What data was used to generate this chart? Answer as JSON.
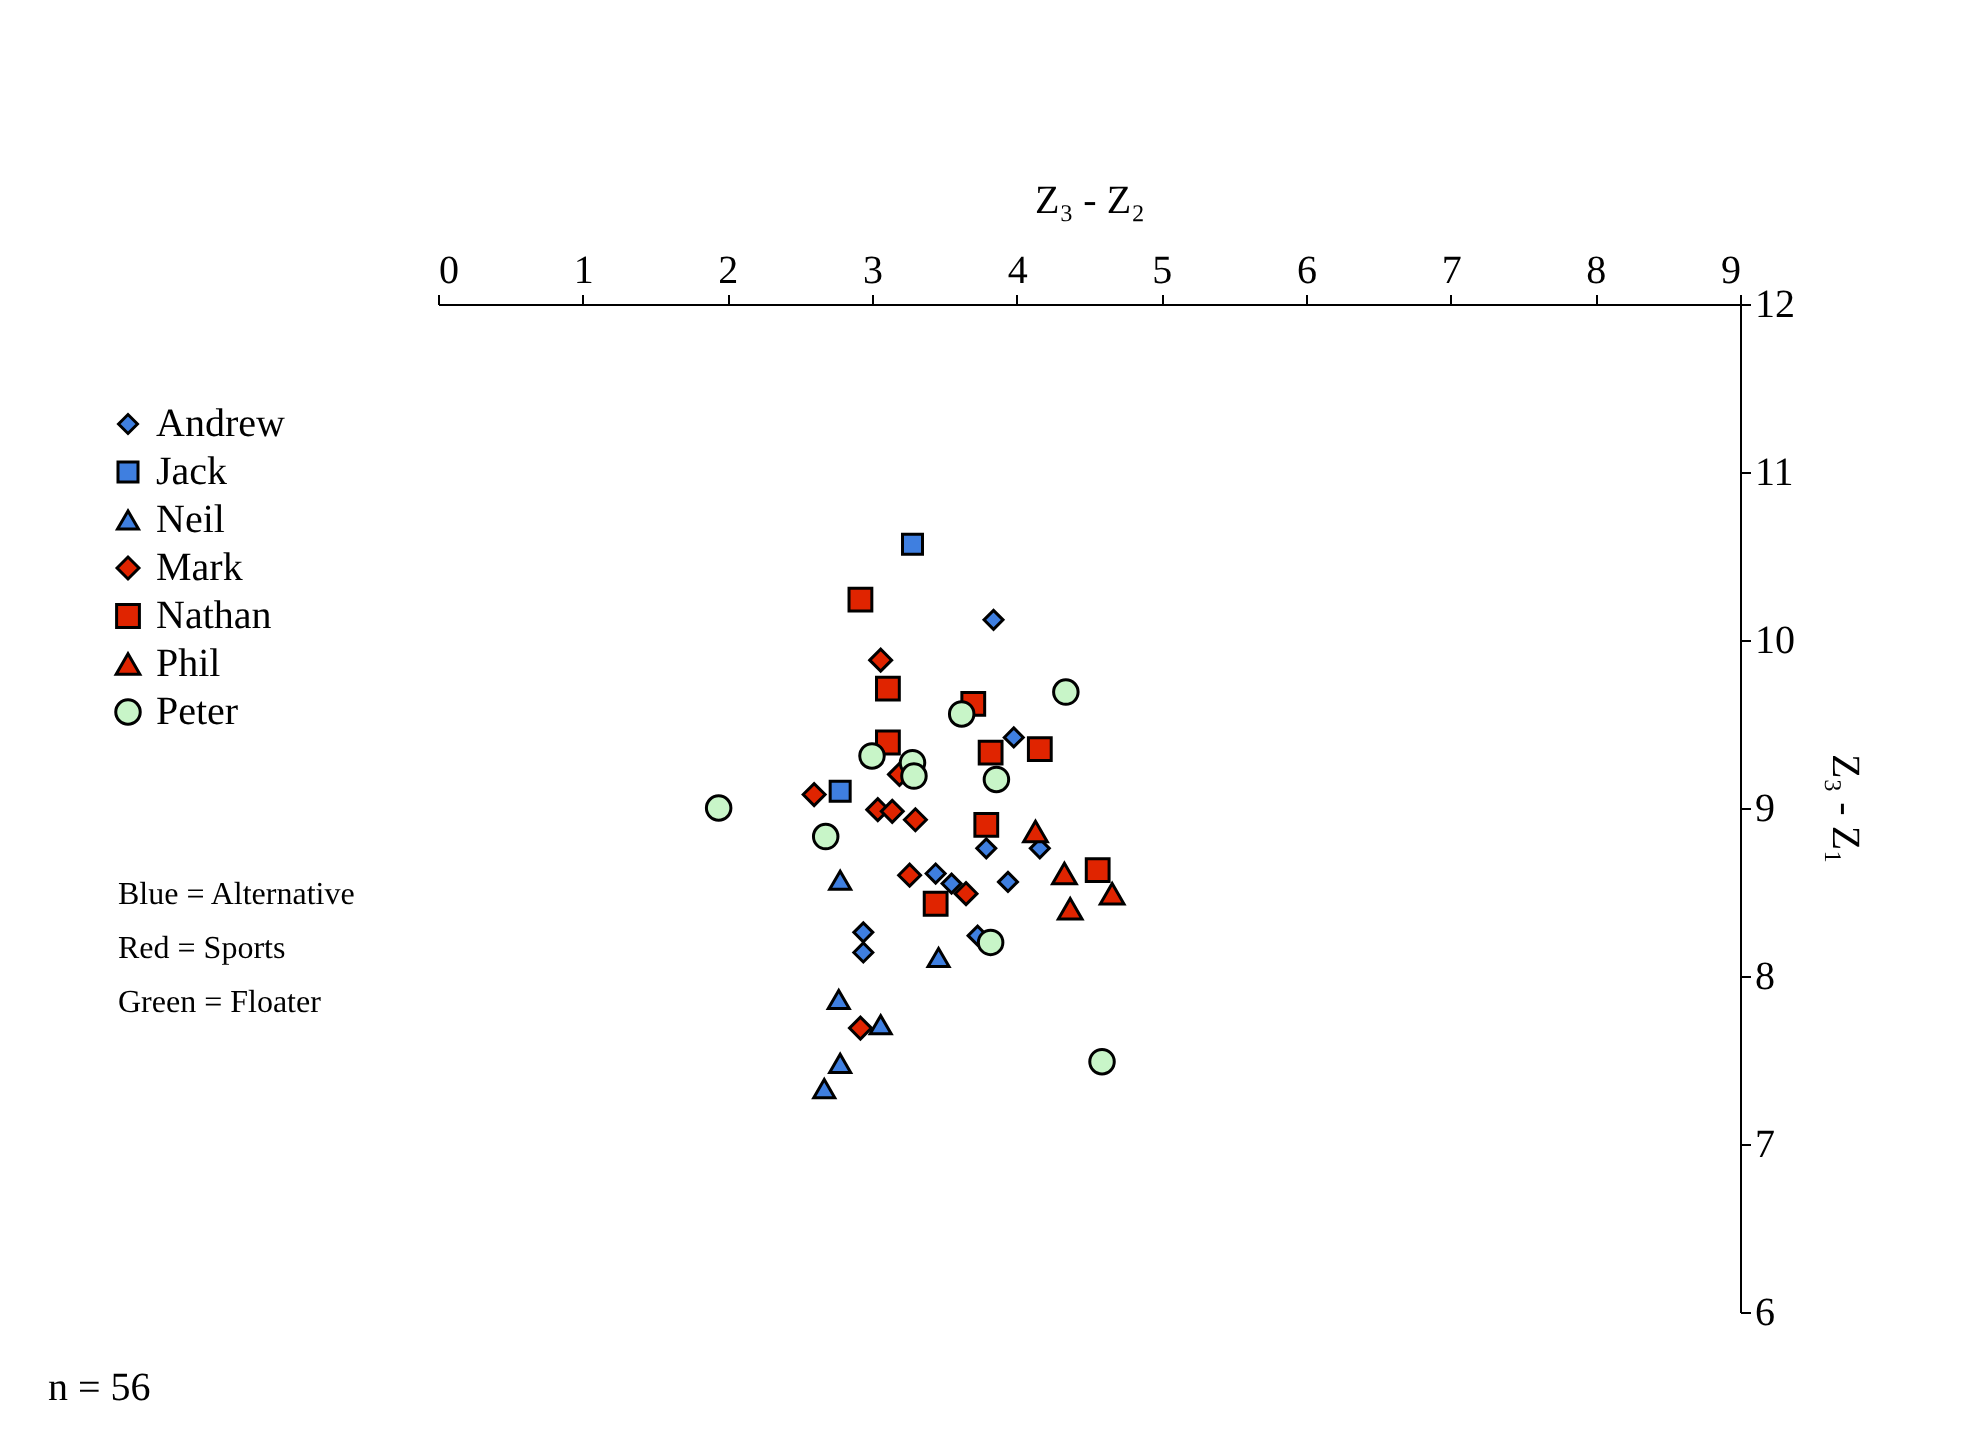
{
  "chart_data": {
    "type": "scatter",
    "xlabel": "Z₃ - Z₂",
    "ylabel": "Z₃ - Z₁",
    "xlim": [
      0,
      9
    ],
    "xticks": [
      0,
      1,
      2,
      3,
      4,
      5,
      6,
      7,
      8,
      9
    ],
    "ylim": [
      6,
      12
    ],
    "yticks": [
      6,
      7,
      8,
      9,
      10,
      11,
      12
    ],
    "grid": false,
    "legend": "left",
    "annotations": [
      "Blue   = Alternative",
      "Red    = Sports",
      "Green = Floater",
      "n  =  56"
    ],
    "series": [
      {
        "name": "Andrew",
        "color": "#3f7fe0",
        "marker": "diamond",
        "x": [
          3.84,
          3.98,
          3.79,
          4.16,
          3.44,
          3.55,
          3.94,
          2.94,
          2.94,
          3.73
        ],
        "values": [
          10.12,
          9.42,
          8.76,
          8.76,
          8.61,
          8.55,
          8.56,
          8.26,
          8.14,
          8.24
        ]
      },
      {
        "name": "Jack",
        "color": "#3f7fe0",
        "marker": "square",
        "x": [
          3.28,
          2.78
        ],
        "values": [
          10.57,
          9.1
        ]
      },
      {
        "name": "Neil",
        "color": "#3f7fe0",
        "marker": "triangle",
        "x": [
          2.78,
          3.46,
          2.77,
          3.06,
          2.78,
          2.67
        ],
        "values": [
          8.57,
          8.11,
          7.86,
          7.71,
          7.48,
          7.33
        ]
      },
      {
        "name": "Mark",
        "color": "#e02400",
        "marker": "diamond",
        "x": [
          3.06,
          3.19,
          2.6,
          3.04,
          3.14,
          3.3,
          3.26,
          3.65,
          2.92
        ],
        "values": [
          9.88,
          9.2,
          9.08,
          8.99,
          8.98,
          8.93,
          8.6,
          8.49,
          7.69
        ]
      },
      {
        "name": "Nathan",
        "color": "#e02400",
        "marker": "square",
        "x": [
          2.92,
          3.11,
          3.11,
          3.7,
          3.82,
          4.16,
          3.79,
          3.44,
          4.56
        ],
        "values": [
          10.24,
          9.71,
          9.39,
          9.62,
          9.33,
          9.35,
          8.9,
          8.43,
          8.63
        ]
      },
      {
        "name": "Phil",
        "color": "#e02400",
        "marker": "triangle",
        "x": [
          4.13,
          4.33,
          4.37,
          4.66
        ],
        "values": [
          8.86,
          8.61,
          8.4,
          8.49
        ]
      },
      {
        "name": "Peter",
        "color": "#c8f5c8",
        "marker": "circle",
        "x": [
          1.94,
          2.68,
          3.0,
          3.28,
          3.29,
          3.62,
          4.34,
          3.86,
          3.82,
          4.59
        ],
        "values": [
          9.0,
          8.83,
          9.31,
          9.27,
          9.19,
          9.56,
          9.69,
          9.17,
          8.2,
          7.49
        ]
      }
    ]
  }
}
